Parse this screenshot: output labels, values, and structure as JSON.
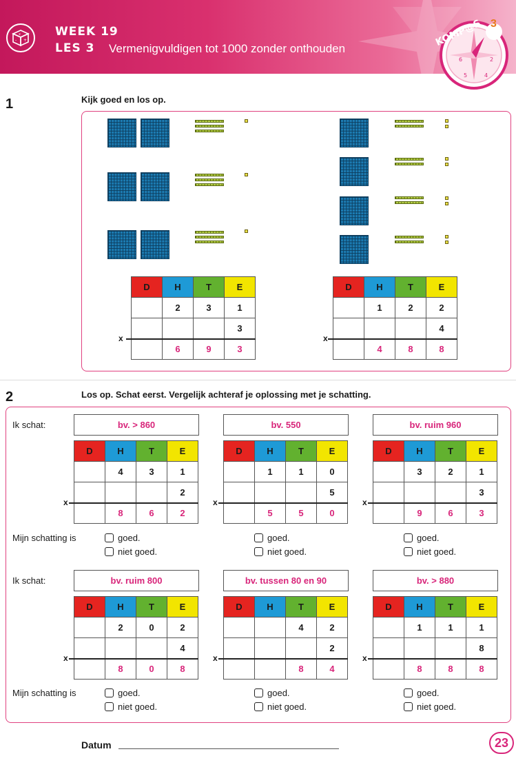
{
  "header": {
    "week": "WEEK 19",
    "les": "LES 3",
    "title": "Vermenigvuldigen tot 1000 zonder onthouden",
    "brand": "KOMP@S",
    "brand_number": "3",
    "colors": {
      "brand": "#c3185b",
      "accent": "#d8257a"
    }
  },
  "ex1": {
    "number": "1",
    "instruction": "Kijk goed en los op.",
    "tables": [
      {
        "header": [
          "D",
          "H",
          "T",
          "E"
        ],
        "row1": [
          "",
          "2",
          "3",
          "1"
        ],
        "row2": [
          "",
          "",
          "",
          "3"
        ],
        "result": [
          "",
          "6",
          "9",
          "3"
        ],
        "x": "x"
      },
      {
        "header": [
          "D",
          "H",
          "T",
          "E"
        ],
        "row1": [
          "",
          "1",
          "2",
          "2"
        ],
        "row2": [
          "",
          "",
          "",
          "4"
        ],
        "result": [
          "",
          "4",
          "8",
          "8"
        ],
        "x": "x"
      }
    ]
  },
  "ex2": {
    "number": "2",
    "instruction": "Los op. Schat eerst. Vergelijk achteraf je oplossing met je schatting.",
    "estimate_label": "Ik schat:",
    "check_label": "Mijn schatting is",
    "opt_good": "goed.",
    "opt_bad": "niet goed.",
    "items": [
      {
        "estimate": "bv. > 860",
        "header": [
          "D",
          "H",
          "T",
          "E"
        ],
        "row1": [
          "",
          "4",
          "3",
          "1"
        ],
        "row2": [
          "",
          "",
          "",
          "2"
        ],
        "result": [
          "",
          "8",
          "6",
          "2"
        ],
        "x": "x"
      },
      {
        "estimate": "bv. 550",
        "header": [
          "D",
          "H",
          "T",
          "E"
        ],
        "row1": [
          "",
          "1",
          "1",
          "0"
        ],
        "row2": [
          "",
          "",
          "",
          "5"
        ],
        "result": [
          "",
          "5",
          "5",
          "0"
        ],
        "x": "x"
      },
      {
        "estimate": "bv. ruim 960",
        "header": [
          "D",
          "H",
          "T",
          "E"
        ],
        "row1": [
          "",
          "3",
          "2",
          "1"
        ],
        "row2": [
          "",
          "",
          "",
          "3"
        ],
        "result": [
          "",
          "9",
          "6",
          "3"
        ],
        "x": "x"
      },
      {
        "estimate": "bv. ruim 800",
        "header": [
          "D",
          "H",
          "T",
          "E"
        ],
        "row1": [
          "",
          "2",
          "0",
          "2"
        ],
        "row2": [
          "",
          "",
          "",
          "4"
        ],
        "result": [
          "",
          "8",
          "0",
          "8"
        ],
        "x": "x"
      },
      {
        "estimate": "bv. tussen 80 en 90",
        "header": [
          "D",
          "H",
          "T",
          "E"
        ],
        "row1": [
          "",
          "",
          "4",
          "2"
        ],
        "row2": [
          "",
          "",
          "",
          "2"
        ],
        "result": [
          "",
          "",
          "8",
          "4"
        ],
        "x": "x"
      },
      {
        "estimate": "bv. > 880",
        "header": [
          "D",
          "H",
          "T",
          "E"
        ],
        "row1": [
          "",
          "1",
          "1",
          "1"
        ],
        "row2": [
          "",
          "",
          "",
          "8"
        ],
        "result": [
          "",
          "8",
          "8",
          "8"
        ],
        "x": "x"
      }
    ]
  },
  "footer": {
    "datum": "Datum",
    "page": "23"
  }
}
